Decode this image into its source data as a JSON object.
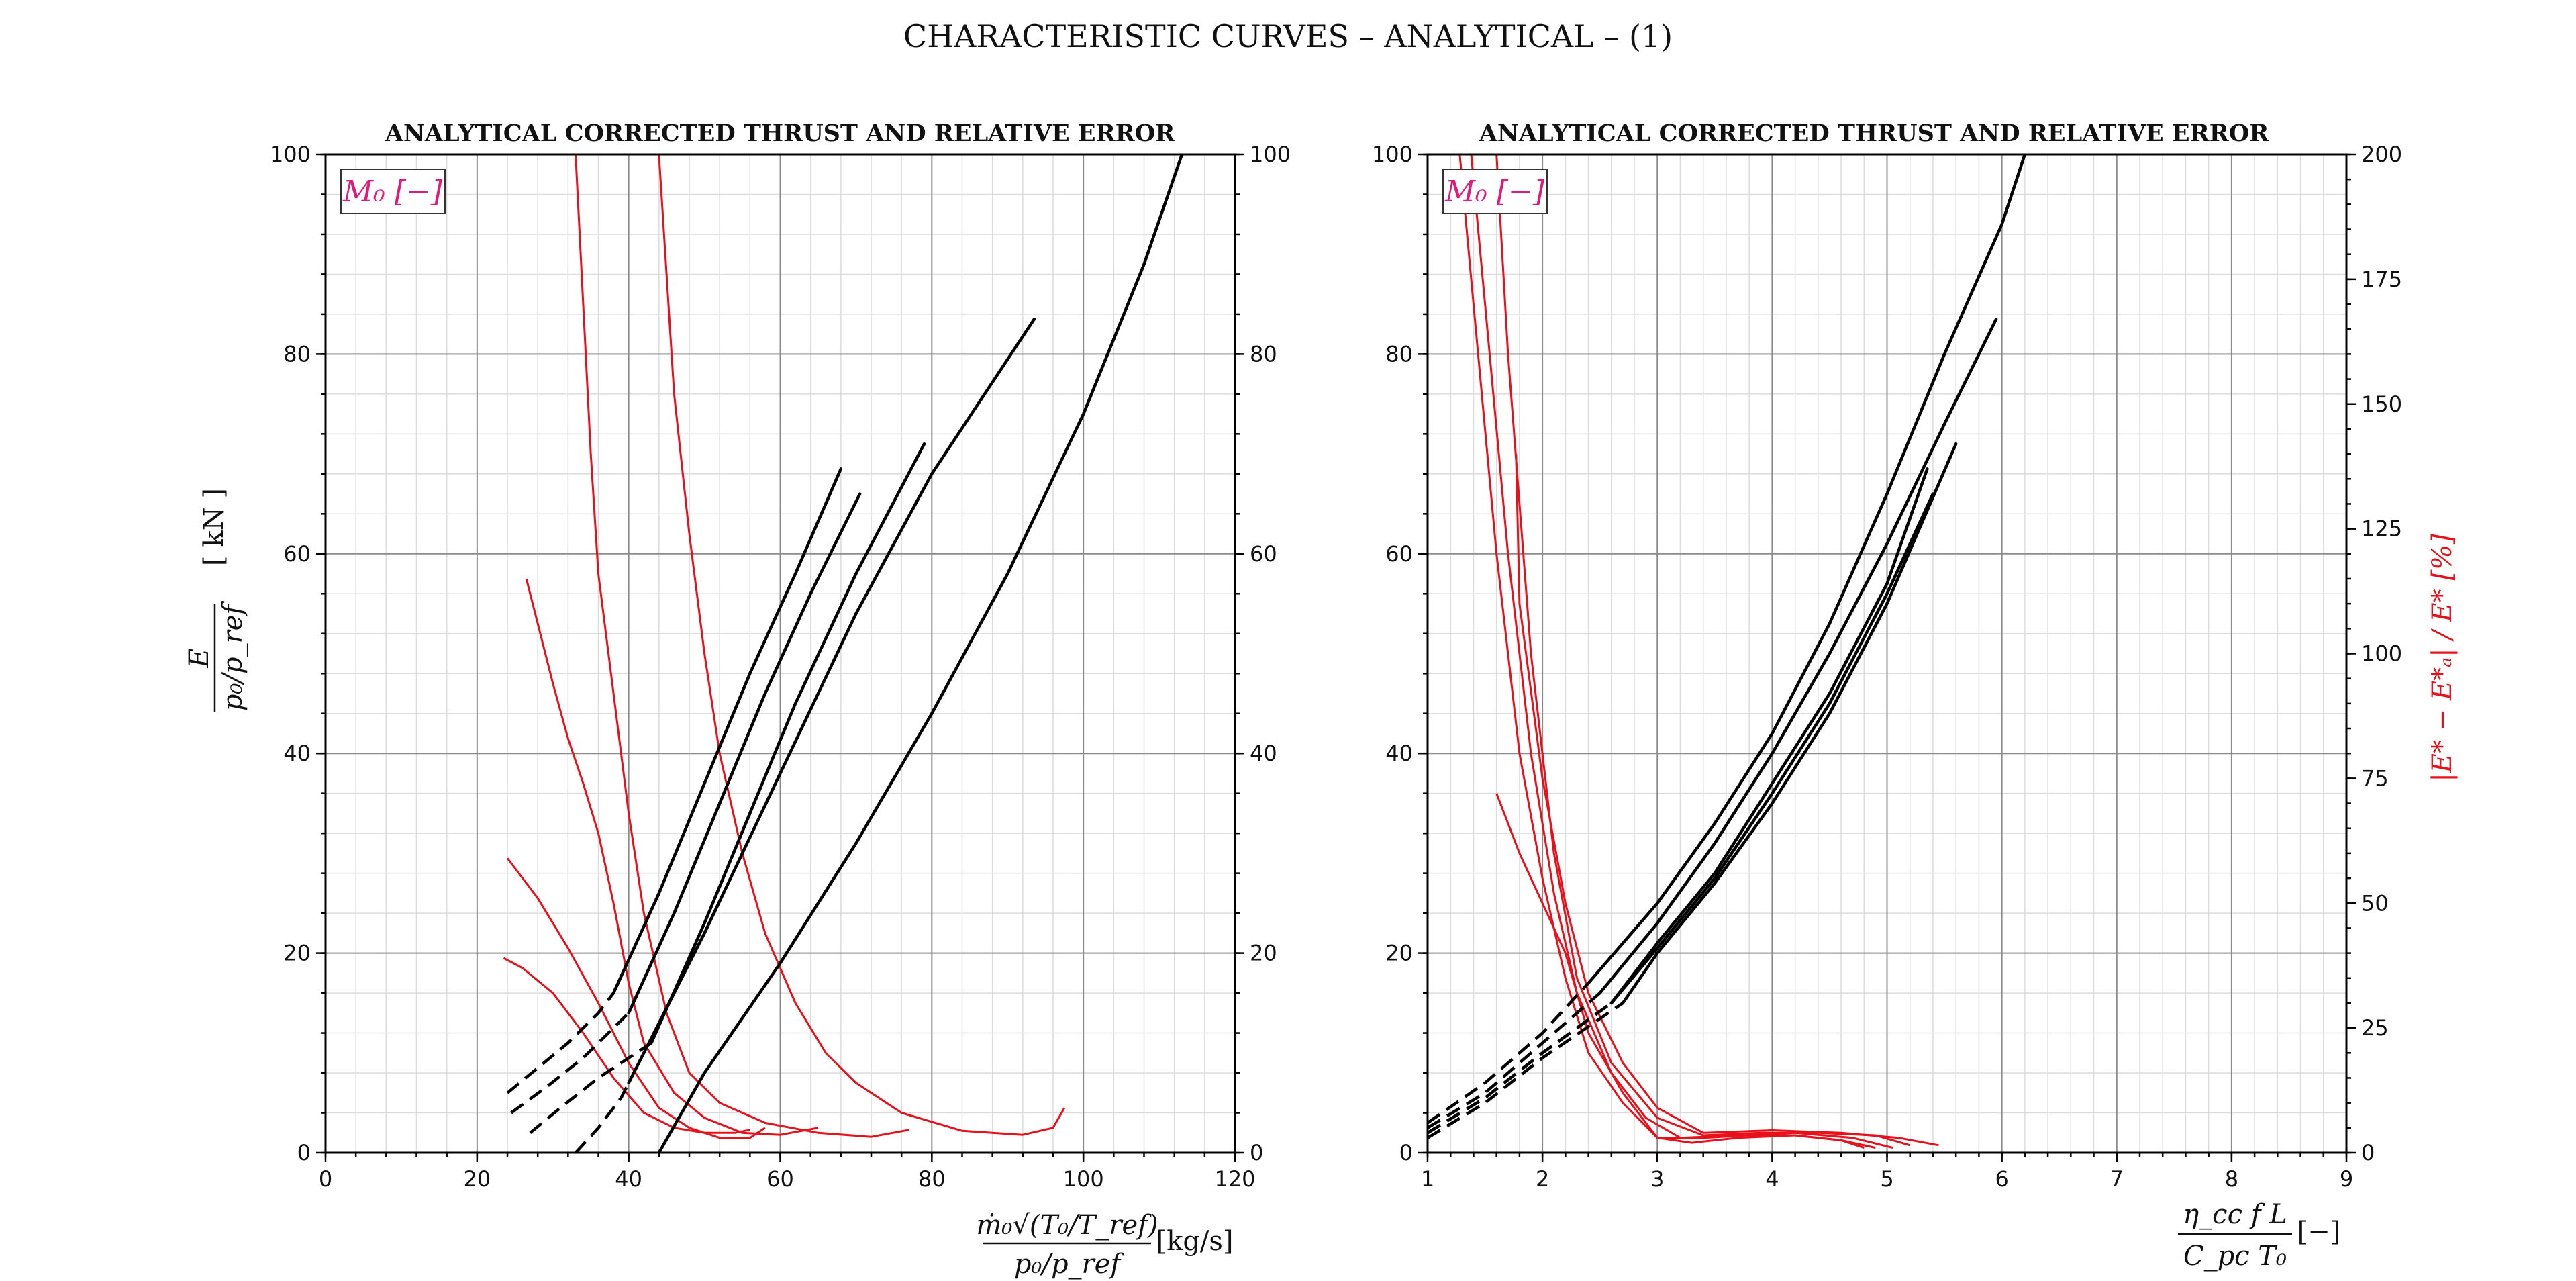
{
  "figure": {
    "title": "CHARACTERISTIC CURVES  – ANALYTICAL – (1)"
  },
  "chart_data": [
    {
      "type": "line",
      "title": "ANALYTICAL CORRECTED THRUST AND RELATIVE ERROR",
      "xlabel_parts": {
        "numerator": "ṁ₀√(T₀/T_ref)",
        "denominator": "p₀/p_ref",
        "unit": "[kg/s]"
      },
      "ylabel_parts": {
        "numerator": "E",
        "denominator": "p₀/p_ref",
        "unit": "[ kN ]"
      },
      "xlim": [
        0,
        120
      ],
      "ylim": [
        0,
        100
      ],
      "y2lim": [
        0,
        100
      ],
      "xticks": [
        0,
        20,
        40,
        60,
        80,
        100,
        120
      ],
      "yticks": [
        0,
        20,
        40,
        60,
        80,
        100
      ],
      "y2ticks": [
        0,
        20,
        40,
        60,
        80,
        100
      ],
      "grid": true,
      "legend": {
        "placement": "top-left",
        "label": "M₀ [−]",
        "color": "#e01a7a"
      },
      "colors": {
        "thrust": "#000000",
        "error": "#e8101a"
      },
      "thrust_series": [
        {
          "solid": [
            [
              38,
              16
            ],
            [
              44,
              26
            ],
            [
              50,
              37
            ],
            [
              56,
              48
            ],
            [
              62,
              58
            ],
            [
              68,
              68.5
            ]
          ],
          "dashed": [
            [
              24,
              6
            ],
            [
              28,
              8.5
            ],
            [
              32,
              11
            ],
            [
              36,
              14
            ],
            [
              38,
              16
            ]
          ]
        },
        {
          "solid": [
            [
              40,
              14
            ],
            [
              46,
              24
            ],
            [
              52,
              35
            ],
            [
              58,
              46
            ],
            [
              64,
              56
            ],
            [
              70.5,
              66
            ]
          ],
          "dashed": [
            [
              24.5,
              4
            ],
            [
              29,
              6.5
            ],
            [
              34,
              9.5
            ],
            [
              38,
              12.5
            ],
            [
              40,
              14
            ]
          ]
        },
        {
          "solid": [
            [
              43,
              11
            ],
            [
              50,
              23
            ],
            [
              56,
              34
            ],
            [
              62,
              45
            ],
            [
              70,
              58
            ],
            [
              79,
              71
            ]
          ],
          "dashed": [
            [
              27,
              2
            ],
            [
              31,
              4.5
            ],
            [
              36,
              7.5
            ],
            [
              41,
              10
            ],
            [
              43,
              11
            ]
          ]
        },
        {
          "solid": [
            [
              40,
              7
            ],
            [
              50,
              22
            ],
            [
              60,
              38
            ],
            [
              70,
              54
            ],
            [
              80,
              68
            ],
            [
              93.5,
              83.5
            ]
          ],
          "dashed": [
            [
              33,
              0
            ],
            [
              36,
              2.5
            ],
            [
              39,
              5.5
            ],
            [
              40,
              7
            ]
          ]
        },
        {
          "solid": [
            [
              44,
              0
            ],
            [
              50,
              8
            ],
            [
              60,
              19
            ],
            [
              70,
              31
            ],
            [
              80,
              44
            ],
            [
              90,
              58
            ],
            [
              100,
              74
            ],
            [
              108,
              89
            ],
            [
              113,
              100
            ]
          ],
          "dashed": []
        }
      ],
      "error_series": [
        {
          "points": [
            [
              23.5,
              19.5
            ],
            [
              26,
              18.5
            ],
            [
              30,
              16
            ],
            [
              34,
              12
            ],
            [
              38,
              7.5
            ],
            [
              42,
              4
            ],
            [
              46,
              2.5
            ],
            [
              50,
              2
            ],
            [
              54,
              2
            ],
            [
              56,
              2.3
            ]
          ]
        },
        {
          "points": [
            [
              24,
              29.5
            ],
            [
              28,
              25.5
            ],
            [
              32,
              20.5
            ],
            [
              36,
              15
            ],
            [
              40,
              9
            ],
            [
              44,
              4.5
            ],
            [
              48,
              2.5
            ],
            [
              52,
              1.5
            ],
            [
              56,
              1.5
            ],
            [
              58,
              2.5
            ]
          ]
        },
        {
          "points": [
            [
              26.5,
              57.5
            ],
            [
              28,
              53
            ],
            [
              30,
              47
            ],
            [
              32,
              41.5
            ],
            [
              34,
              37
            ],
            [
              36,
              32
            ],
            [
              38,
              25
            ],
            [
              40,
              17
            ],
            [
              42,
              11
            ],
            [
              46,
              6
            ],
            [
              50,
              3.5
            ],
            [
              55,
              2
            ],
            [
              60,
              1.8
            ],
            [
              65,
              2.5
            ]
          ]
        },
        {
          "points": [
            [
              33,
              100
            ],
            [
              34,
              85
            ],
            [
              35,
              70
            ],
            [
              36,
              58
            ],
            [
              38,
              46
            ],
            [
              40,
              34
            ],
            [
              42,
              24
            ],
            [
              45,
              14
            ],
            [
              48,
              8
            ],
            [
              52,
              5
            ],
            [
              58,
              3
            ],
            [
              65,
              2
            ],
            [
              72,
              1.6
            ],
            [
              77,
              2.3
            ]
          ]
        },
        {
          "points": [
            [
              44,
              100
            ],
            [
              45,
              88
            ],
            [
              46,
              76
            ],
            [
              48,
              62
            ],
            [
              50,
              50
            ],
            [
              52,
              40
            ],
            [
              55,
              30
            ],
            [
              58,
              22
            ],
            [
              62,
              15
            ],
            [
              66,
              10
            ],
            [
              70,
              7
            ],
            [
              76,
              4
            ],
            [
              84,
              2.2
            ],
            [
              92,
              1.8
            ],
            [
              96,
              2.5
            ],
            [
              97.5,
              4.5
            ]
          ]
        }
      ]
    },
    {
      "type": "line",
      "title": "ANALYTICAL CORRECTED THRUST AND RELATIVE ERROR",
      "xlabel_parts": {
        "numerator": "η_cc f L",
        "denominator": "C_pc T₀",
        "unit": "[−]"
      },
      "y2label": "|E* − E*ₐ| / E*  [%]",
      "xlim": [
        1,
        9
      ],
      "ylim": [
        0,
        100
      ],
      "y2lim": [
        0,
        200
      ],
      "xticks": [
        1,
        2,
        3,
        4,
        5,
        6,
        7,
        8,
        9
      ],
      "yticks": [
        0,
        20,
        40,
        60,
        80,
        100
      ],
      "y2ticks": [
        0,
        25,
        50,
        75,
        100,
        125,
        150,
        175,
        200
      ],
      "grid": true,
      "legend": {
        "placement": "top-left",
        "label": "M₀ [−]",
        "color": "#e01a7a"
      },
      "colors": {
        "thrust": "#000000",
        "error": "#e8101a"
      },
      "thrust_series": [
        {
          "solid": [
            [
              2.4,
              17
            ],
            [
              3,
              25
            ],
            [
              3.5,
              33
            ],
            [
              4,
              42
            ],
            [
              4.5,
              53
            ],
            [
              5,
              66
            ],
            [
              5.5,
              80
            ],
            [
              6,
              93
            ],
            [
              6.2,
              100
            ]
          ],
          "dashed": [
            [
              1,
              3
            ],
            [
              1.5,
              7
            ],
            [
              2,
              12
            ],
            [
              2.4,
              17
            ]
          ]
        },
        {
          "solid": [
            [
              2.5,
              16
            ],
            [
              3,
              23
            ],
            [
              3.5,
              31
            ],
            [
              4,
              40
            ],
            [
              4.5,
              50
            ],
            [
              5,
              61
            ],
            [
              5.5,
              73
            ],
            [
              5.95,
              83.5
            ]
          ],
          "dashed": [
            [
              1,
              2.5
            ],
            [
              1.5,
              6
            ],
            [
              2,
              11
            ],
            [
              2.5,
              16
            ]
          ]
        },
        {
          "solid": [
            [
              2.6,
              15
            ],
            [
              3,
              21
            ],
            [
              3.5,
              28
            ],
            [
              4,
              37
            ],
            [
              4.5,
              46
            ],
            [
              5,
              57
            ],
            [
              5.35,
              68.5
            ]
          ],
          "dashed": [
            [
              1,
              2
            ],
            [
              1.5,
              5.5
            ],
            [
              2,
              10
            ],
            [
              2.6,
              15
            ]
          ]
        },
        {
          "solid": [
            [
              2.6,
              15
            ],
            [
              3,
              20.5
            ],
            [
              3.5,
              27.5
            ],
            [
              4,
              36
            ],
            [
              4.5,
              45
            ],
            [
              5,
              56
            ],
            [
              5.4,
              66
            ]
          ],
          "dashed": [
            [
              1,
              2
            ],
            [
              1.5,
              5.5
            ],
            [
              2,
              10
            ],
            [
              2.6,
              15
            ]
          ]
        },
        {
          "solid": [
            [
              2.7,
              15
            ],
            [
              3,
              20
            ],
            [
              3.5,
              27
            ],
            [
              4,
              35
            ],
            [
              4.5,
              44
            ],
            [
              5,
              55
            ],
            [
              5.6,
              71
            ]
          ],
          "dashed": [
            [
              1,
              1.5
            ],
            [
              1.5,
              5
            ],
            [
              2,
              9.5
            ],
            [
              2.7,
              15
            ]
          ]
        }
      ],
      "error_series": [
        {
          "points": [
            [
              1.6,
              72
            ],
            [
              1.8,
              60
            ],
            [
              2,
              50
            ],
            [
              2.2,
              40
            ],
            [
              2.4,
              24
            ],
            [
              2.7,
              12
            ],
            [
              3,
              3
            ],
            [
              3.3,
              2
            ],
            [
              3.7,
              3
            ],
            [
              4.2,
              3.5
            ],
            [
              4.6,
              2.5
            ],
            [
              4.8,
              1
            ]
          ]
        },
        {
          "points": [
            [
              1.28,
              200
            ],
            [
              1.4,
              170
            ],
            [
              1.6,
              120
            ],
            [
              1.8,
              80
            ],
            [
              2,
              55
            ],
            [
              2.2,
              35
            ],
            [
              2.4,
              20
            ],
            [
              2.7,
              10
            ],
            [
              3,
              3
            ],
            [
              3.4,
              3
            ],
            [
              3.8,
              3.5
            ],
            [
              4.2,
              3.5
            ],
            [
              4.6,
              2.5
            ],
            [
              4.9,
              1
            ]
          ]
        },
        {
          "points": [
            [
              1.38,
              200
            ],
            [
              1.5,
              170
            ],
            [
              1.7,
              120
            ],
            [
              1.9,
              80
            ],
            [
              2.1,
              52
            ],
            [
              2.3,
              32
            ],
            [
              2.6,
              16
            ],
            [
              2.9,
              7
            ],
            [
              3.2,
              3
            ],
            [
              3.7,
              3.5
            ],
            [
              4.2,
              4
            ],
            [
              4.7,
              3
            ],
            [
              5.05,
              1
            ]
          ]
        },
        {
          "points": [
            [
              1.6,
              200
            ],
            [
              1.7,
              160
            ],
            [
              1.9,
              100
            ],
            [
              2.1,
              60
            ],
            [
              2.3,
              35
            ],
            [
              2.6,
              18
            ],
            [
              3,
              7
            ],
            [
              3.4,
              3.5
            ],
            [
              3.9,
              4
            ],
            [
              4.4,
              4
            ],
            [
              4.9,
              3.5
            ],
            [
              5.2,
              1.5
            ]
          ]
        },
        {
          "points": [
            [
              1.77,
              140
            ],
            [
              1.8,
              110
            ],
            [
              2,
              75
            ],
            [
              2.2,
              50
            ],
            [
              2.4,
              32
            ],
            [
              2.7,
              18
            ],
            [
              3,
              9
            ],
            [
              3.4,
              4
            ],
            [
              4,
              4.5
            ],
            [
              4.6,
              4
            ],
            [
              5.1,
              3
            ],
            [
              5.45,
              1.5
            ]
          ]
        }
      ]
    }
  ]
}
